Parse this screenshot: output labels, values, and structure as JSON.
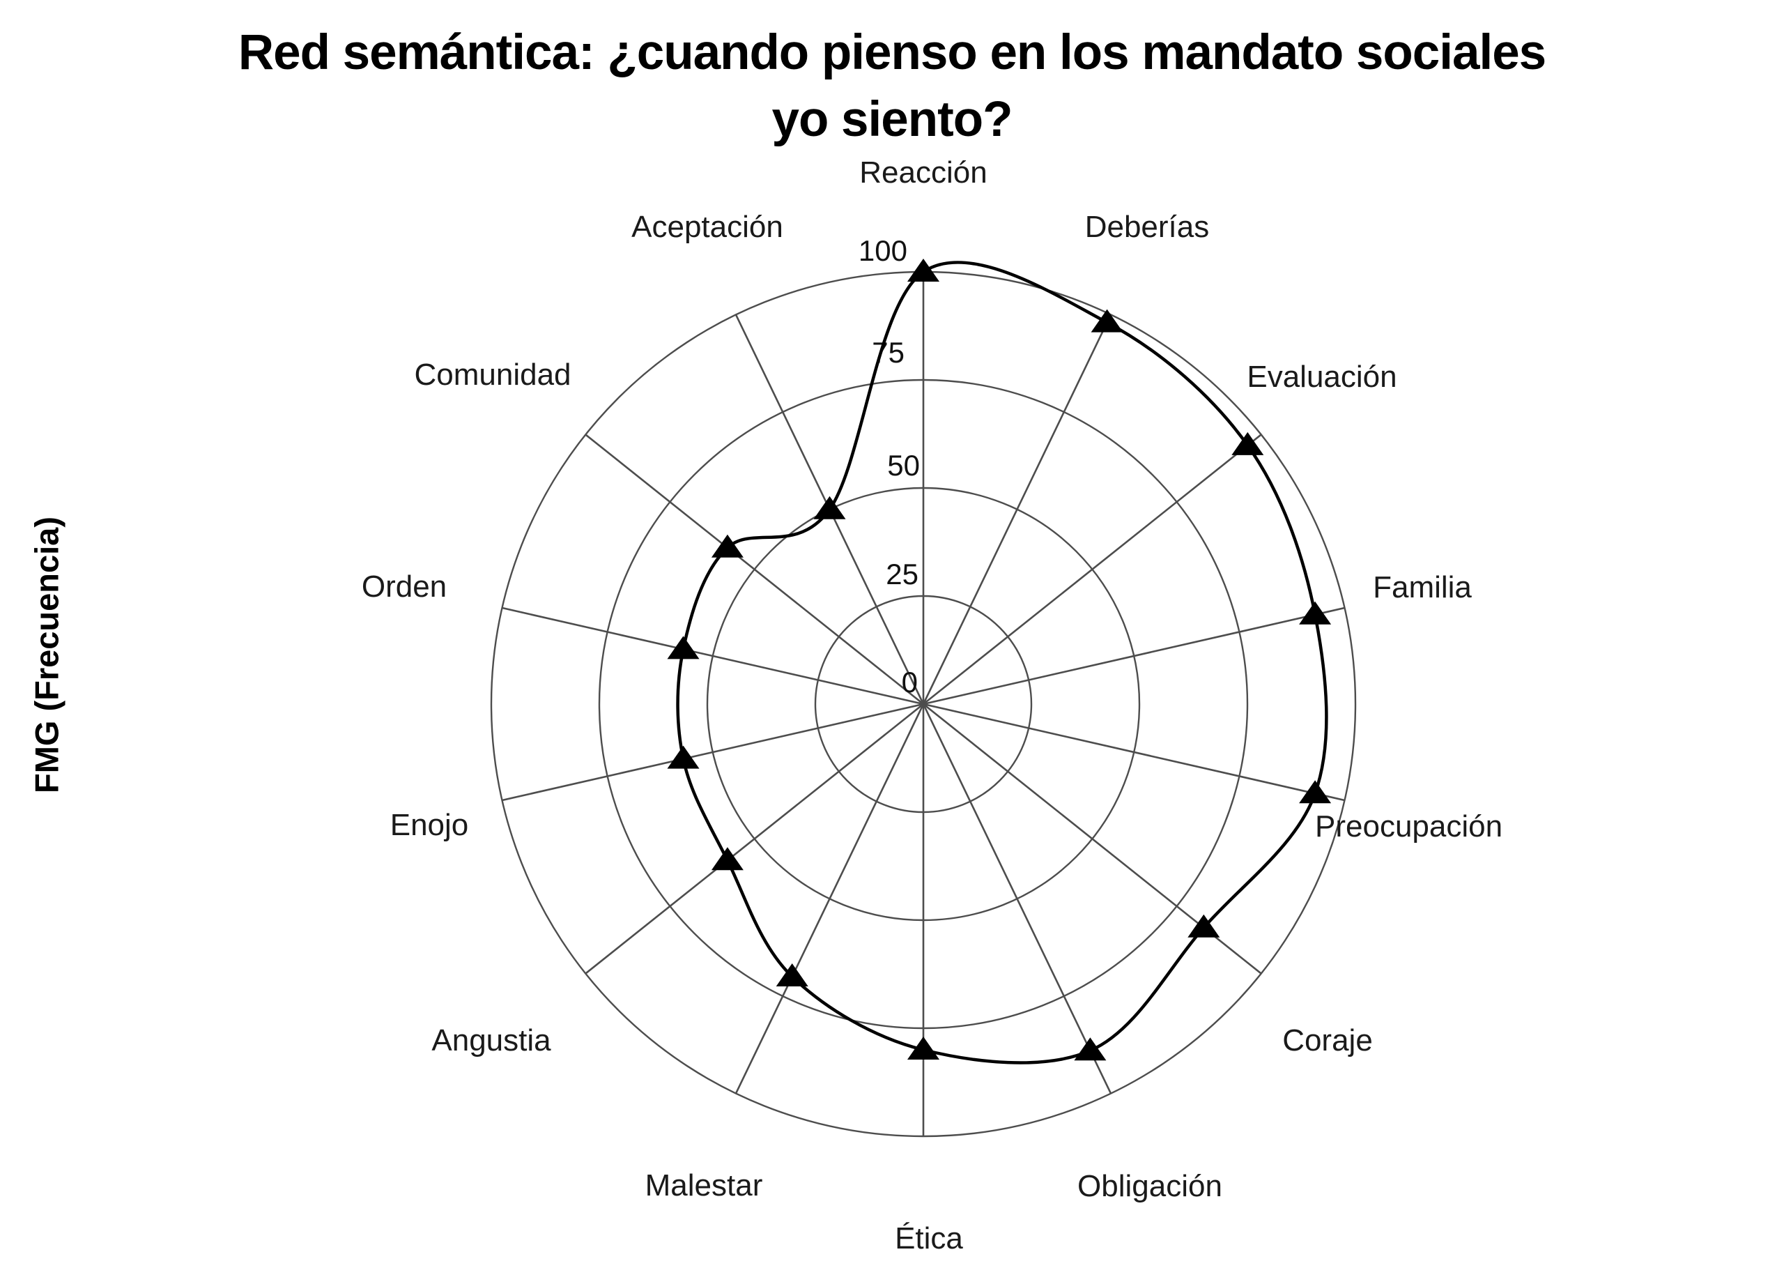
{
  "title": {
    "line1": "Red semántica: ¿cuando pienso en los mandato sociales",
    "line2": "yo siento?",
    "full": "Red semántica: ¿cuando pienso en los mandato sociales yo siento?"
  },
  "ylabel": "FMG (Frecuencia)",
  "chart_data": {
    "type": "radar",
    "title": "Red semántica: ¿cuando pienso en los mandato sociales yo siento?",
    "radial_axis_label": "FMG (Frecuencia)",
    "categories": [
      "Reacción",
      "Deberías",
      "Evaluación",
      "Familia",
      "Preocupación",
      "Coraje",
      "Obligación",
      "Ética",
      "Malestar",
      "Angustia",
      "Enojo",
      "Orden",
      "Comunidad",
      "Aceptación"
    ],
    "values": [
      100,
      98,
      96,
      93,
      93,
      83,
      89,
      80,
      70,
      58,
      57,
      57,
      58,
      50
    ],
    "radial_ticks": [
      "0",
      "25",
      "50",
      "75",
      "100"
    ],
    "radial_tick_values": [
      0,
      25,
      50,
      75,
      100
    ],
    "rlim": [
      0,
      100
    ],
    "start_angle_deg": 90,
    "direction": "clockwise",
    "grid": true,
    "line_style": "smooth-closed-spline",
    "marker": "triangle-up",
    "colors": {
      "line": "#000000",
      "marker": "#000000",
      "grid": "#4d4d4d",
      "category_label": "#1a1a1a",
      "tick_label": "#111111",
      "background": "#ffffff"
    }
  }
}
